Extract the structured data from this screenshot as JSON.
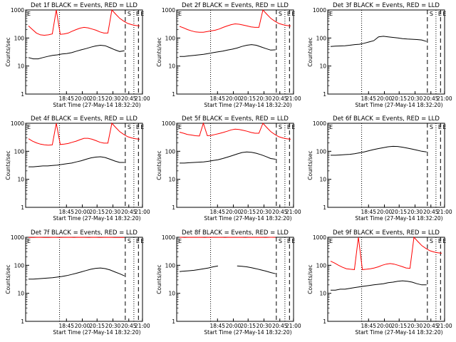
{
  "chart_data": [
    {
      "type": "line",
      "title": "Det 1f BLACK = Events, RED = LLD",
      "xlabel": "Start Time (27-May-14 18:32:20)",
      "ylabel": "Counts/sec",
      "ylim": [
        1,
        1000
      ],
      "yscale": "log",
      "grid": false,
      "x_ticks": [
        "18:45",
        "20:00",
        "20:15",
        "20:30",
        "20:45",
        "21:00"
      ],
      "y_ticks": [
        "1",
        "10",
        "100",
        "1000"
      ],
      "markers": [
        {
          "label": "S",
          "type": "dashed"
        },
        {
          "label": "E",
          "type": "dotted"
        },
        {
          "label": "E",
          "type": "dashed"
        }
      ],
      "series": [
        {
          "color": "#ff0000",
          "values": [
            270,
            200,
            150,
            130,
            125,
            130,
            140,
            1000,
            135,
            140,
            150,
            175,
            200,
            225,
            240,
            230,
            210,
            190,
            165,
            150,
            150,
            1000,
            700,
            500,
            400,
            330,
            300,
            280,
            270
          ]
        },
        {
          "color": "#000000",
          "values": [
            20,
            18,
            18,
            20,
            22,
            24,
            25,
            27,
            28,
            30,
            34,
            38,
            42,
            47,
            52,
            55,
            53,
            45,
            38,
            33,
            35
          ]
        }
      ]
    },
    {
      "type": "line",
      "title": "Det 2f BLACK = Events, RED = LLD",
      "xlabel": "Start Time (27-May-14 18:32:20)",
      "ylabel": "Counts/sec",
      "ylim": [
        1,
        1000
      ],
      "yscale": "log",
      "grid": false,
      "x_ticks": [
        "18:45",
        "20:00",
        "20:15",
        "20:30",
        "20:45",
        "21:00"
      ],
      "y_ticks": [
        "1",
        "10",
        "100",
        "1000"
      ],
      "markers": [
        {
          "label": "S",
          "type": "dashed"
        },
        {
          "label": "E",
          "type": "dotted"
        },
        {
          "label": "E",
          "type": "dashed"
        }
      ],
      "series": [
        {
          "color": "#ff0000",
          "values": [
            260,
            230,
            200,
            180,
            165,
            160,
            160,
            170,
            180,
            190,
            210,
            240,
            270,
            300,
            320,
            310,
            290,
            270,
            250,
            240,
            240,
            1000,
            700,
            500,
            400,
            330,
            300,
            280,
            270
          ]
        },
        {
          "color": "#000000",
          "values": [
            22,
            22,
            23,
            24,
            25,
            26,
            28,
            30,
            32,
            34,
            37,
            40,
            44,
            50,
            55,
            58,
            55,
            48,
            42,
            37,
            38
          ]
        }
      ]
    },
    {
      "type": "line",
      "title": "Det 3f BLACK = Events, RED = LLD",
      "xlabel": "Start Time (27-May-14 18:32:20)",
      "ylabel": "Counts/sec",
      "ylim": [
        1,
        1000
      ],
      "yscale": "log",
      "grid": false,
      "x_ticks": [
        "18:45",
        "20:00",
        "20:15",
        "20:30",
        "20:45",
        "21:00"
      ],
      "y_ticks": [
        "1",
        "10",
        "100",
        "1000"
      ],
      "markers": [
        {
          "label": "S",
          "type": "dashed"
        },
        {
          "label": "E",
          "type": "dotted"
        },
        {
          "label": "E",
          "type": "dashed"
        }
      ],
      "series": [
        {
          "color": "#000000",
          "values": [
            50,
            51,
            52,
            53,
            55,
            58,
            60,
            65,
            72,
            80,
            110,
            115,
            110,
            105,
            100,
            95,
            92,
            90,
            88,
            85,
            75
          ]
        }
      ]
    },
    {
      "type": "line",
      "title": "Det 4f BLACK = Events, RED = LLD",
      "xlabel": "Start Time (27-May-14 18:32:20)",
      "ylabel": "Counts/sec",
      "ylim": [
        1,
        1000
      ],
      "yscale": "log",
      "grid": false,
      "x_ticks": [
        "18:45",
        "20:00",
        "20:15",
        "20:30",
        "20:45",
        "21:00"
      ],
      "y_ticks": [
        "1",
        "10",
        "100",
        "1000"
      ],
      "markers": [
        {
          "label": "S",
          "type": "dashed"
        },
        {
          "label": "E",
          "type": "dotted"
        },
        {
          "label": "E",
          "type": "dashed"
        }
      ],
      "series": [
        {
          "color": "#ff0000",
          "values": [
            280,
            230,
            200,
            180,
            170,
            165,
            170,
            1000,
            175,
            180,
            190,
            210,
            230,
            260,
            290,
            290,
            270,
            240,
            210,
            195,
            195,
            1000,
            700,
            500,
            400,
            330,
            300,
            280,
            270
          ]
        },
        {
          "color": "#000000",
          "values": [
            28,
            28,
            29,
            30,
            30,
            31,
            32,
            34,
            36,
            38,
            42,
            46,
            52,
            58,
            62,
            64,
            60,
            52,
            45,
            40,
            40
          ]
        }
      ]
    },
    {
      "type": "line",
      "title": "Det 5f BLACK = Events, RED = LLD",
      "xlabel": "Start Time (27-May-14 18:32:20)",
      "ylabel": "Counts/sec",
      "ylim": [
        1,
        1000
      ],
      "yscale": "log",
      "grid": false,
      "x_ticks": [
        "18:45",
        "20:00",
        "20:15",
        "20:30",
        "20:45",
        "21:00"
      ],
      "y_ticks": [
        "1",
        "10",
        "100",
        "1000"
      ],
      "markers": [
        {
          "label": "S",
          "type": "dashed"
        },
        {
          "label": "E",
          "type": "dotted"
        },
        {
          "label": "E",
          "type": "dashed"
        }
      ],
      "series": [
        {
          "color": "#ff0000",
          "values": [
            480,
            440,
            400,
            380,
            360,
            350,
            1000,
            360,
            370,
            400,
            430,
            470,
            520,
            580,
            620,
            600,
            560,
            520,
            470,
            440,
            440,
            1000,
            700,
            500,
            400,
            330,
            300,
            280,
            270
          ]
        },
        {
          "color": "#000000",
          "values": [
            38,
            38,
            39,
            40,
            41,
            42,
            44,
            47,
            50,
            55,
            62,
            70,
            80,
            90,
            95,
            92,
            85,
            75,
            65,
            55,
            52
          ]
        }
      ]
    },
    {
      "type": "line",
      "title": "Det 6f BLACK = Events, RED = LLD",
      "xlabel": "Start Time (27-May-14 18:32:20)",
      "ylabel": "Counts/sec",
      "ylim": [
        1,
        1000
      ],
      "yscale": "log",
      "grid": false,
      "x_ticks": [
        "18:45",
        "20:00",
        "20:15",
        "20:30",
        "20:45",
        "21:00"
      ],
      "y_ticks": [
        "1",
        "10",
        "100",
        "1000"
      ],
      "markers": [
        {
          "label": "S",
          "type": "dashed"
        },
        {
          "label": "E",
          "type": "dotted"
        },
        {
          "label": "E",
          "type": "dashed"
        }
      ],
      "series": [
        {
          "color": "#000000",
          "values": [
            72,
            72,
            74,
            76,
            78,
            82,
            88,
            95,
            105,
            115,
            125,
            135,
            145,
            150,
            148,
            140,
            130,
            120,
            110,
            100,
            95
          ]
        }
      ]
    },
    {
      "type": "line",
      "title": "Det 7f BLACK = Events, RED = LLD",
      "xlabel": "Start Time (27-May-14 18:32:20)",
      "ylabel": "Counts/sec",
      "ylim": [
        1,
        1000
      ],
      "yscale": "log",
      "grid": false,
      "x_ticks": [
        "18:45",
        "20:00",
        "20:15",
        "20:30",
        "20:45",
        "21:00"
      ],
      "y_ticks": [
        "1",
        "10",
        "100",
        "1000"
      ],
      "markers": [
        {
          "label": "S",
          "type": "dashed"
        },
        {
          "label": "E",
          "type": "dotted"
        },
        {
          "label": "E",
          "type": "dashed"
        }
      ],
      "series": [
        {
          "color": "#ff0000",
          "values": [
            980,
            990,
            1000,
            990,
            985,
            1000,
            990,
            995,
            1000,
            990,
            1000,
            995,
            990,
            1000,
            990,
            995,
            1000,
            990,
            985,
            990
          ]
        },
        {
          "color": "#000000",
          "values": [
            32,
            32,
            33,
            34,
            35,
            36,
            38,
            40,
            43,
            47,
            52,
            58,
            65,
            72,
            78,
            80,
            76,
            68,
            58,
            50,
            42
          ]
        }
      ]
    },
    {
      "type": "line",
      "title": "Det 8f BLACK = Events, RED = LLD",
      "xlabel": "Start Time (27-May-14 18:32:20)",
      "ylabel": "Counts/sec",
      "ylim": [
        1,
        1000
      ],
      "yscale": "log",
      "grid": false,
      "x_ticks": [
        "18:45",
        "20:00",
        "20:15",
        "20:30",
        "20:45",
        "21:00"
      ],
      "y_ticks": [
        "1",
        "10",
        "100",
        "1000"
      ],
      "markers": [
        {
          "label": "S",
          "type": "dashed"
        },
        {
          "label": "E",
          "type": "dotted"
        },
        {
          "label": "E",
          "type": "dashed"
        }
      ],
      "series": [
        {
          "color": "#ff0000",
          "values": [
            1000,
            990,
            1000,
            995,
            1000,
            990,
            1000,
            995,
            1000,
            990,
            1000,
            995,
            1000,
            990,
            1000,
            995,
            1000,
            990,
            1000,
            995
          ]
        },
        {
          "color": "#000000",
          "values": [
            60,
            62,
            64,
            66,
            70,
            75,
            80,
            88,
            95,
            null,
            null,
            null,
            95,
            92,
            88,
            82,
            75,
            68,
            62,
            55,
            50
          ]
        }
      ]
    },
    {
      "type": "line",
      "title": "Det 9f BLACK = Events, RED = LLD",
      "xlabel": "Start Time (27-May-14 18:32:20)",
      "ylabel": "Counts/sec",
      "ylim": [
        1,
        1000
      ],
      "yscale": "log",
      "grid": false,
      "x_ticks": [
        "18:45",
        "20:00",
        "20:15",
        "20:30",
        "20:45",
        "21:00"
      ],
      "y_ticks": [
        "1",
        "10",
        "100",
        "1000"
      ],
      "markers": [
        {
          "label": "S",
          "type": "dashed"
        },
        {
          "label": "E",
          "type": "dotted"
        },
        {
          "label": "E",
          "type": "dashed"
        }
      ],
      "series": [
        {
          "color": "#ff0000",
          "values": [
            140,
            120,
            100,
            85,
            75,
            72,
            70,
            1000,
            70,
            72,
            75,
            80,
            88,
            100,
            110,
            115,
            110,
            100,
            90,
            80,
            78,
            1000,
            700,
            500,
            400,
            330,
            300,
            280,
            270
          ]
        },
        {
          "color": "#000000",
          "values": [
            13,
            13,
            14,
            14,
            15,
            16,
            17,
            18,
            19,
            20,
            21,
            22,
            24,
            25,
            27,
            28,
            27,
            25,
            22,
            20,
            20
          ]
        }
      ]
    }
  ]
}
